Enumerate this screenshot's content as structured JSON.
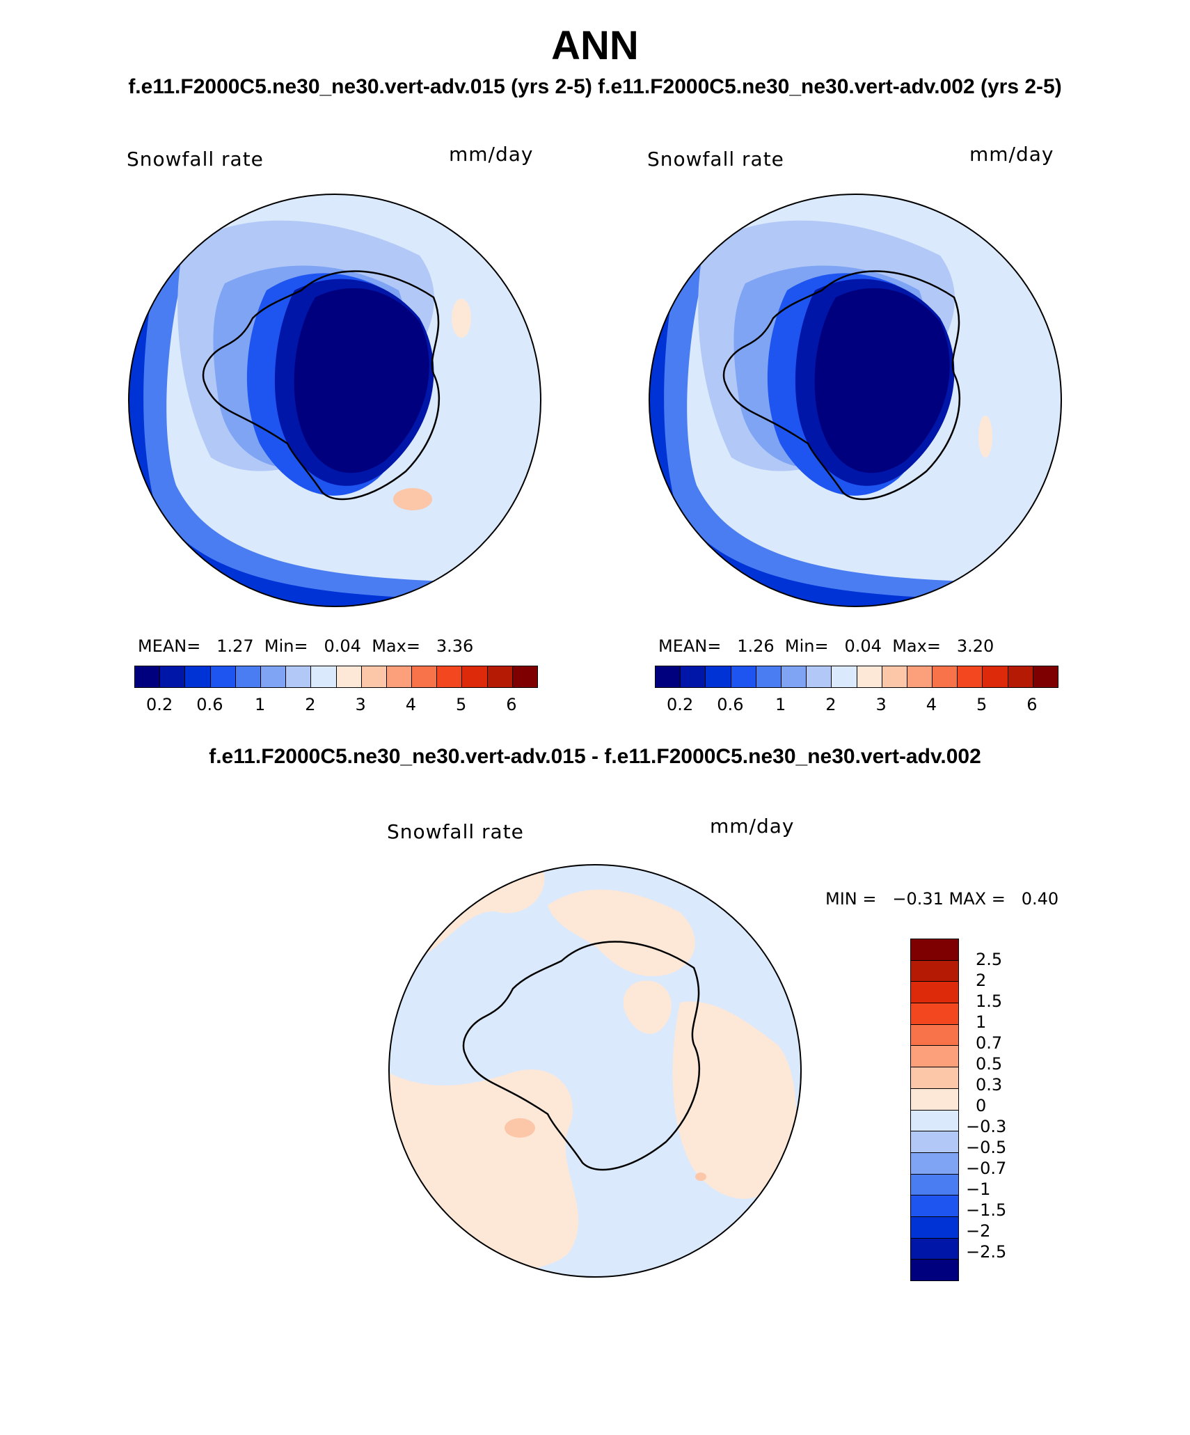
{
  "main_title": "ANN",
  "subtitle": "f.e11.F2000C5.ne30_ne30.vert-adv.015 (yrs 2-5) f.e11.F2000C5.ne30_ne30.vert-adv.002 (yrs 2-5)",
  "diff_title": "f.e11.F2000C5.ne30_ne30.vert-adv.015 - f.e11.F2000C5.ne30_ne30.vert-adv.002",
  "panels": [
    {
      "variable": "Snowfall rate",
      "units": "mm/day",
      "stats": "MEAN=   1.27  Min=   0.04  Max=   3.36"
    },
    {
      "variable": "Snowfall rate",
      "units": "mm/day",
      "stats": "MEAN=   1.26  Min=   0.04  Max=   3.20"
    },
    {
      "variable": "Snowfall rate",
      "units": "mm/day",
      "stats": "MIN =   −0.31 MAX =   0.40"
    }
  ],
  "colorbar_abs": {
    "colors": [
      "#00007f",
      "#0016a8",
      "#0033d6",
      "#1e55f0",
      "#4a7df2",
      "#7fa4f4",
      "#b2c9f8",
      "#dbe9fc",
      "#fde8d8",
      "#fcc6a8",
      "#fba07a",
      "#f9734a",
      "#f3481f",
      "#dc2a0a",
      "#b51a05",
      "#7f0000"
    ],
    "tick_labels": [
      "0.2",
      "0.6",
      "1",
      "2",
      "3",
      "4",
      "5",
      "6"
    ]
  },
  "colorbar_diff": {
    "colors": [
      "#7f0000",
      "#b51a05",
      "#dc2a0a",
      "#f3481f",
      "#f9734a",
      "#fba07a",
      "#fcc6a8",
      "#fde8d8",
      "#dbe9fc",
      "#b2c9f8",
      "#7fa4f4",
      "#4a7df2",
      "#1e55f0",
      "#0033d6",
      "#0016a8",
      "#00007f"
    ],
    "tick_labels": [
      "2.5",
      "2",
      "1.5",
      "1",
      "0.7",
      "0.5",
      "0.3",
      "0",
      "−0.3",
      "−0.5",
      "−0.7",
      "−1",
      "−1.5",
      "−2",
      "−2.5"
    ]
  },
  "map_colors": {
    "level1": "#00007f",
    "level2": "#0016a8",
    "level3": "#0033d6",
    "level4": "#1e55f0",
    "level5": "#4a7df2",
    "level6": "#7fa4f4",
    "level7": "#b2c9f8",
    "level8": "#dbe9fc",
    "pos1": "#fde8d8",
    "pos2": "#fcc6a8",
    "coast": "#000000"
  }
}
